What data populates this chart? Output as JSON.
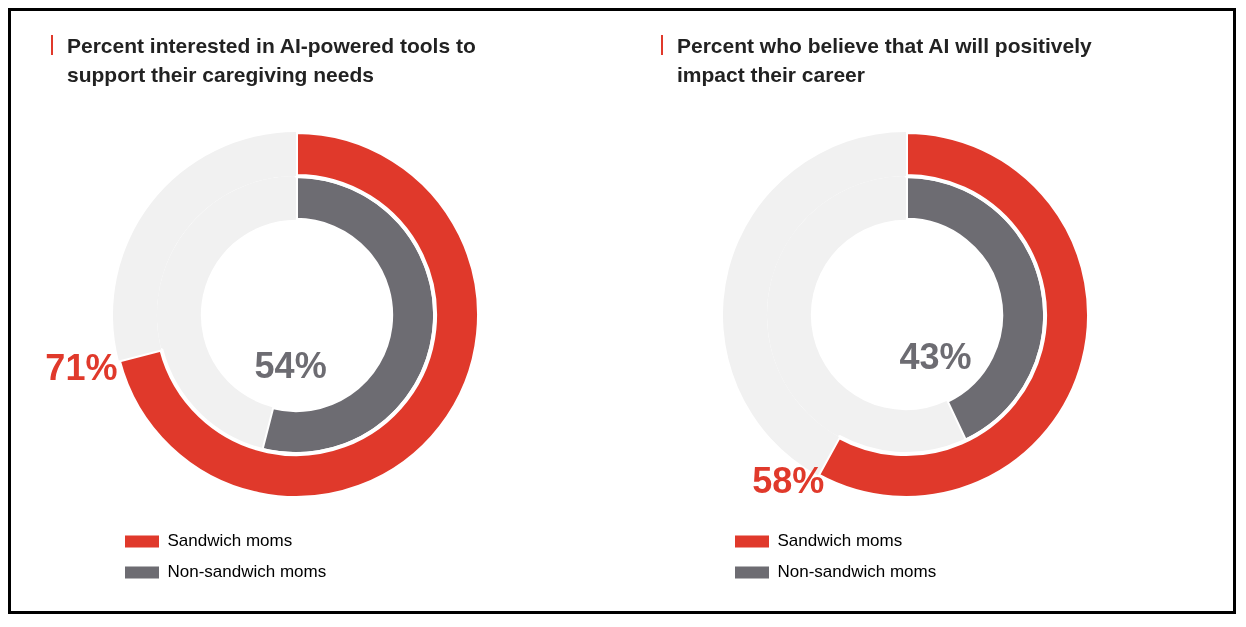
{
  "chart_data": [
    {
      "type": "donut",
      "title": "Percent interested in AI-powered tools to support their caregiving needs",
      "categories": [
        null,
        null
      ],
      "series": [
        {
          "name": "Sandwich moms",
          "color": "#e0392b",
          "colors": [
            "#e0392b",
            "#f1f1f1"
          ],
          "values": [
            71,
            29
          ],
          "value_labels": [
            "71%",
            null
          ]
        },
        {
          "name": "Non-sandwich moms",
          "color": "#6d6c72",
          "colors": [
            "#6d6c72",
            "#f1f1f1"
          ],
          "values": [
            54,
            46
          ],
          "value_labels": [
            "54%",
            null
          ]
        }
      ],
      "data_labels": true,
      "legend": "bottom"
    },
    {
      "type": "donut",
      "title": "Percent who believe that AI will positively impact their career",
      "categories": [
        null,
        null
      ],
      "series": [
        {
          "name": "Sandwich moms",
          "color": "#e0392b",
          "colors": [
            "#e0392b",
            "#f1f1f1"
          ],
          "values": [
            58,
            42
          ],
          "value_labels": [
            "58%",
            null
          ]
        },
        {
          "name": "Non-sandwich moms",
          "color": "#6d6c72",
          "colors": [
            "#6d6c72",
            "#f1f1f1"
          ],
          "values": [
            43,
            57
          ],
          "value_labels": [
            "43%",
            null
          ]
        }
      ],
      "data_labels": true,
      "legend": "bottom"
    }
  ]
}
